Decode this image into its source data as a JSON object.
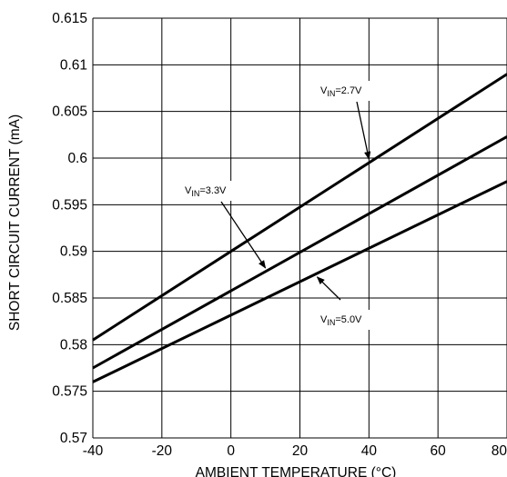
{
  "chart_data": {
    "type": "line",
    "title": "",
    "xlabel": "AMBIENT TEMPERATURE (°C)",
    "ylabel": "SHORT CIRCUIT CURRENT (mA)",
    "xlim": [
      -40,
      80
    ],
    "ylim": [
      0.57,
      0.615
    ],
    "x_ticks": [
      "-40",
      "-20",
      "0",
      "20",
      "40",
      "60",
      "80"
    ],
    "y_ticks": [
      "0.615",
      "0.61",
      "0.605",
      "0.6",
      "0.595",
      "0.59",
      "0.585",
      "0.58",
      "0.575",
      "0.57"
    ],
    "grid": true,
    "series": [
      {
        "name": "VIN=2.7V",
        "x": [
          -40,
          80
        ],
        "values": [
          0.5805,
          0.609
        ]
      },
      {
        "name": "VIN=3.3V",
        "x": [
          -40,
          80
        ],
        "values": [
          0.5775,
          0.6023
        ]
      },
      {
        "name": "VIN=5.0V",
        "x": [
          -40,
          80
        ],
        "values": [
          0.576,
          0.5975
        ]
      }
    ],
    "annotations": [
      {
        "main": "V",
        "sub": "IN",
        "rest": "=2.7V",
        "series": 0
      },
      {
        "main": "V",
        "sub": "IN",
        "rest": "=3.3V",
        "series": 1
      },
      {
        "main": "V",
        "sub": "IN",
        "rest": "=5.0V",
        "series": 2
      }
    ]
  }
}
